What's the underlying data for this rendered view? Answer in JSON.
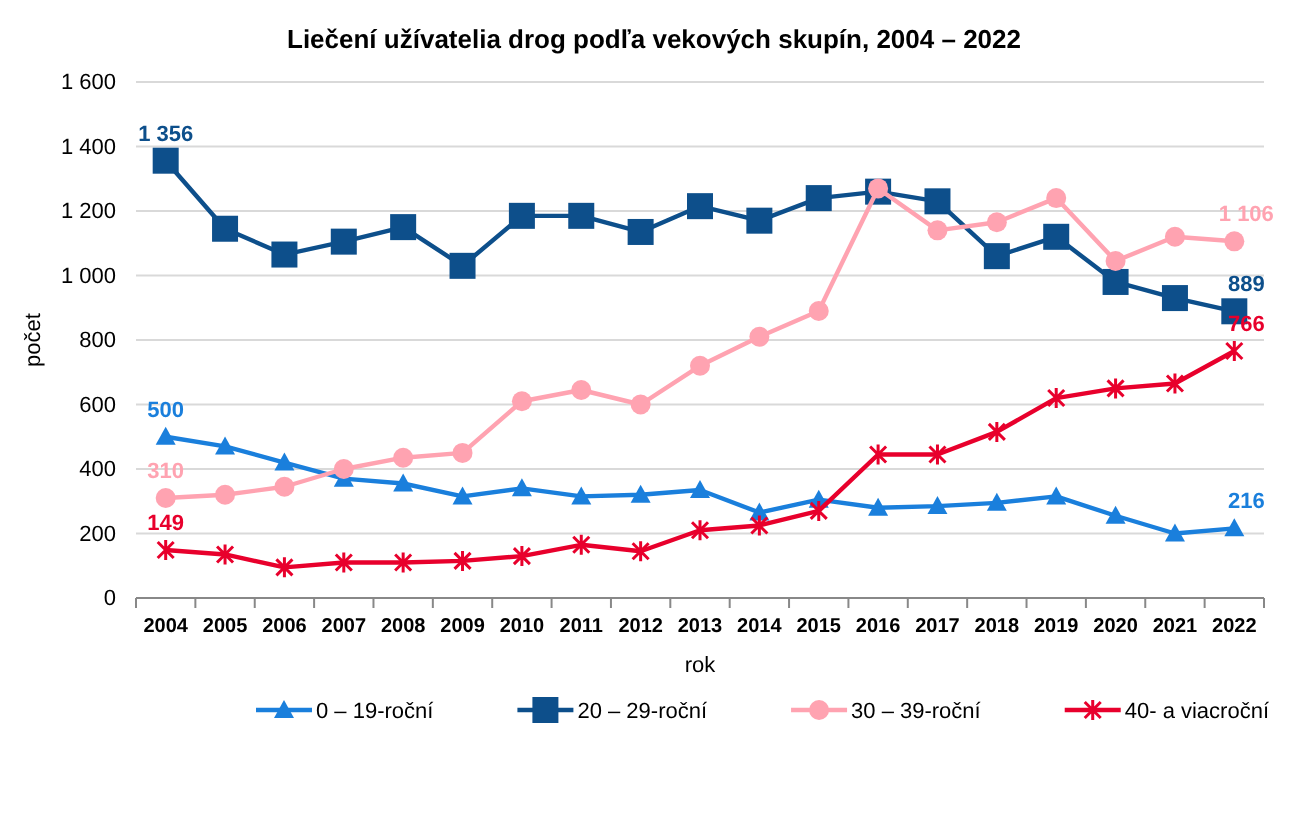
{
  "chart_data": {
    "type": "line",
    "title": "Liečení užívatelia drog podľa vekových  skupín, 2004 – 2022",
    "xlabel": "rok",
    "ylabel": "počet",
    "categories": [
      "2004",
      "2005",
      "2006",
      "2007",
      "2008",
      "2009",
      "2010",
      "2011",
      "2012",
      "2013",
      "2014",
      "2015",
      "2016",
      "2017",
      "2018",
      "2019",
      "2020",
      "2021",
      "2022"
    ],
    "ylim": [
      0,
      1600
    ],
    "yticks": [
      0,
      {
        "value": 200,
        "label": "200"
      },
      {
        "value": 400,
        "label": "400"
      },
      {
        "value": 600,
        "label": "600"
      },
      {
        "value": 800,
        "label": "800"
      },
      {
        "value": 1000,
        "label": "1 000"
      },
      {
        "value": 1200,
        "label": "1 200"
      },
      {
        "value": 1400,
        "label": "1 400"
      },
      {
        "value": 1600,
        "label": "1 600"
      }
    ],
    "grid": "y",
    "legend": "bottom",
    "line_style": "solid",
    "series": [
      {
        "name": "0 – 19-roční",
        "color": "#1a7fdc",
        "marker": "triangle",
        "values": [
          500,
          470,
          420,
          370,
          355,
          315,
          340,
          315,
          320,
          335,
          265,
          305,
          280,
          285,
          295,
          315,
          255,
          200,
          216
        ],
        "value_labels": [
          "500",
          null,
          null,
          null,
          null,
          null,
          null,
          null,
          null,
          null,
          null,
          null,
          null,
          null,
          null,
          null,
          null,
          null,
          "216"
        ]
      },
      {
        "name": "20 – 29-roční",
        "color": "#0d4f8b",
        "marker": "square",
        "values": [
          1356,
          1145,
          1065,
          1105,
          1150,
          1030,
          1185,
          1185,
          1135,
          1215,
          1170,
          1240,
          1260,
          1230,
          1060,
          1120,
          980,
          930,
          889
        ],
        "value_labels": [
          "1 356",
          null,
          null,
          null,
          null,
          null,
          null,
          null,
          null,
          null,
          null,
          null,
          null,
          null,
          null,
          null,
          null,
          null,
          "889"
        ]
      },
      {
        "name": "30 – 39-roční",
        "color": "#ffa3b1",
        "marker": "circle",
        "values": [
          310,
          320,
          345,
          400,
          435,
          450,
          610,
          645,
          600,
          720,
          810,
          890,
          1270,
          1140,
          1165,
          1240,
          1045,
          1120,
          1106
        ],
        "value_labels": [
          "310",
          null,
          null,
          null,
          null,
          null,
          null,
          null,
          null,
          null,
          null,
          null,
          null,
          null,
          null,
          null,
          null,
          null,
          "1 106"
        ]
      },
      {
        "name": "40- a viacroční",
        "color": "#e8002c",
        "marker": "cross",
        "values": [
          149,
          135,
          95,
          110,
          110,
          115,
          130,
          165,
          145,
          210,
          225,
          270,
          445,
          445,
          515,
          620,
          650,
          665,
          766
        ],
        "value_labels": [
          "149",
          null,
          null,
          null,
          null,
          null,
          null,
          null,
          null,
          null,
          null,
          null,
          null,
          null,
          null,
          null,
          null,
          null,
          "766"
        ]
      }
    ]
  }
}
